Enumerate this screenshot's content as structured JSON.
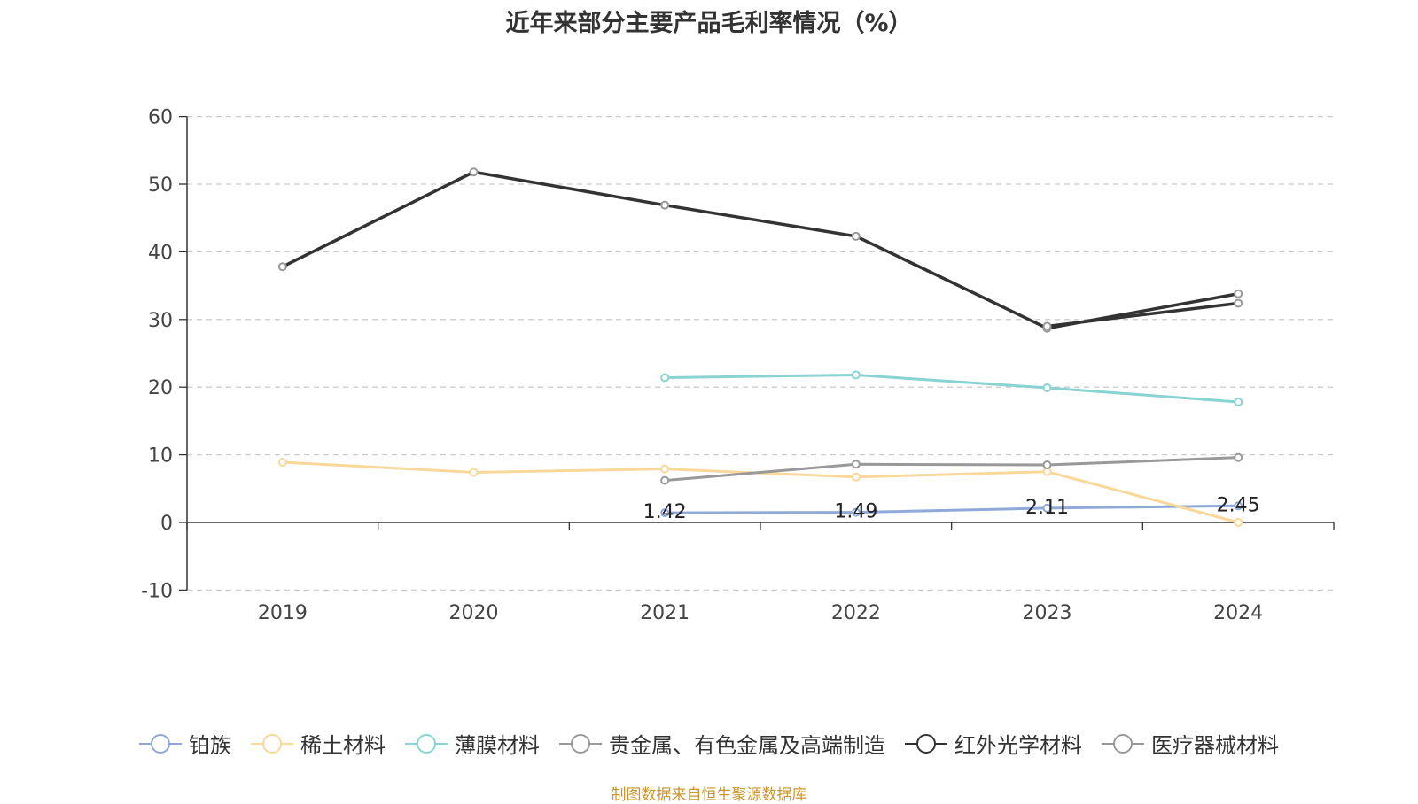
{
  "chart_data": {
    "type": "line",
    "title": "近年来部分主要产品毛利率情况（%）",
    "categories": [
      "2019",
      "2020",
      "2021",
      "2022",
      "2023",
      "2024"
    ],
    "ylim": [
      -10,
      60
    ],
    "yticks": [
      60,
      50,
      40,
      30,
      20,
      10,
      0,
      -10
    ],
    "grid": true,
    "legend_position": "bottom",
    "series": [
      {
        "name": "铂族",
        "color": "#8fa9d9",
        "values": [
          null,
          null,
          1.42,
          1.49,
          2.11,
          2.45
        ],
        "labels": [
          null,
          null,
          "1.42",
          "1.49",
          "2.11",
          "2.45"
        ]
      },
      {
        "name": "稀土材料",
        "color": "#f9d89a",
        "values": [
          8.9,
          7.4,
          7.9,
          6.7,
          7.5,
          0.0
        ]
      },
      {
        "name": "薄膜材料",
        "color": "#8ad3d3",
        "values": [
          null,
          null,
          21.4,
          21.8,
          19.9,
          17.8
        ]
      },
      {
        "name": "贵金属、有色金属及高端制造",
        "color": "#999999",
        "values": [
          null,
          null,
          6.2,
          8.6,
          8.5,
          9.6
        ]
      },
      {
        "name": "红外光学材料",
        "color": "#333333",
        "values": [
          37.8,
          51.8,
          46.9,
          42.3,
          28.7,
          33.8
        ]
      },
      {
        "name": "医疗器械材料",
        "color": "#333333",
        "legend_color": "#999999",
        "values": [
          null,
          null,
          null,
          null,
          29.0,
          32.4
        ]
      }
    ]
  },
  "source": "制图数据来自恒生聚源数据库"
}
